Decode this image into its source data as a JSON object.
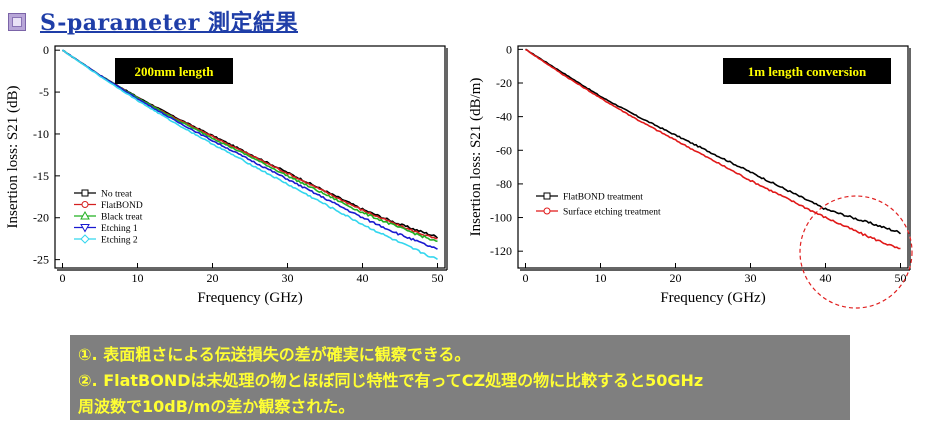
{
  "header": {
    "title": "S-parameter 測定結果"
  },
  "notes": [
    "①. 表面粗さによる伝送損失の差が確実に観察できる。",
    "②. FlatBONDは未処理の物とほぼ同じ特性で有ってCZ処理の物に比較すると50GHz",
    "周波数で10dB/mの差か観察された。"
  ],
  "chart_data": [
    {
      "type": "line",
      "title": "200mm length",
      "xlabel": "Frequency (GHz)",
      "ylabel": "Insertion loss: S21 (dB)",
      "xlim": [
        -1,
        51
      ],
      "ylim": [
        -26,
        0.5
      ],
      "xticks": [
        0,
        10,
        20,
        30,
        40,
        50
      ],
      "yticks": [
        0,
        -5,
        -10,
        -15,
        -20,
        -25
      ],
      "legend_position": "bottom-left",
      "series": [
        {
          "name": "No treat",
          "color": "#000000",
          "x": [
            0,
            5,
            10,
            15,
            20,
            25,
            30,
            35,
            40,
            45,
            50
          ],
          "values": [
            0,
            -3.0,
            -5.6,
            -8.0,
            -10.2,
            -12.4,
            -14.6,
            -16.8,
            -19.0,
            -20.8,
            -22.3
          ]
        },
        {
          "name": "FlatBOND",
          "color": "#d42020",
          "x": [
            0,
            5,
            10,
            15,
            20,
            25,
            30,
            35,
            40,
            45,
            50
          ],
          "values": [
            0,
            -3.0,
            -5.7,
            -8.1,
            -10.3,
            -12.5,
            -14.7,
            -16.9,
            -19.1,
            -21.0,
            -22.6
          ]
        },
        {
          "name": "Black treat",
          "color": "#22b022",
          "x": [
            0,
            5,
            10,
            15,
            20,
            25,
            30,
            35,
            40,
            45,
            50
          ],
          "values": [
            0,
            -3.0,
            -5.7,
            -8.2,
            -10.5,
            -12.7,
            -15.0,
            -17.2,
            -19.4,
            -21.2,
            -22.9
          ]
        },
        {
          "name": "Etching 1",
          "color": "#1a1ad0",
          "x": [
            0,
            5,
            10,
            15,
            20,
            25,
            30,
            35,
            40,
            45,
            50
          ],
          "values": [
            0,
            -3.0,
            -5.8,
            -8.4,
            -10.8,
            -13.1,
            -15.4,
            -17.7,
            -20.0,
            -22.0,
            -23.8
          ]
        },
        {
          "name": "Etching 2",
          "color": "#33d6ee",
          "x": [
            0,
            5,
            10,
            15,
            20,
            25,
            30,
            35,
            40,
            45,
            50
          ],
          "values": [
            0,
            -3.1,
            -6.0,
            -8.7,
            -11.2,
            -13.6,
            -16.0,
            -18.4,
            -20.8,
            -23.0,
            -25.0
          ]
        }
      ]
    },
    {
      "type": "line",
      "title": "1m length conversion",
      "xlabel": "Frequency (GHz)",
      "ylabel": "Insertion loss: S21 (dB/m)",
      "xlim": [
        -1,
        51
      ],
      "ylim": [
        -130,
        2
      ],
      "xticks": [
        0,
        10,
        20,
        30,
        40,
        50
      ],
      "yticks": [
        0,
        -20,
        -40,
        -60,
        -80,
        -100,
        -120
      ],
      "legend_position": "bottom-left",
      "series": [
        {
          "name": "FlatBOND treatment",
          "color": "#000000",
          "x": [
            0,
            5,
            10,
            15,
            20,
            25,
            30,
            35,
            40,
            45,
            50
          ],
          "values": [
            0,
            -14,
            -28,
            -40,
            -51,
            -62,
            -73,
            -84,
            -95,
            -102,
            -109
          ]
        },
        {
          "name": "Surface etching treatment",
          "color": "#e01818",
          "x": [
            0,
            5,
            10,
            15,
            20,
            25,
            30,
            35,
            40,
            45,
            50
          ],
          "values": [
            0,
            -15,
            -29,
            -42,
            -54,
            -66,
            -78,
            -89,
            -100,
            -110,
            -119
          ]
        }
      ]
    }
  ]
}
